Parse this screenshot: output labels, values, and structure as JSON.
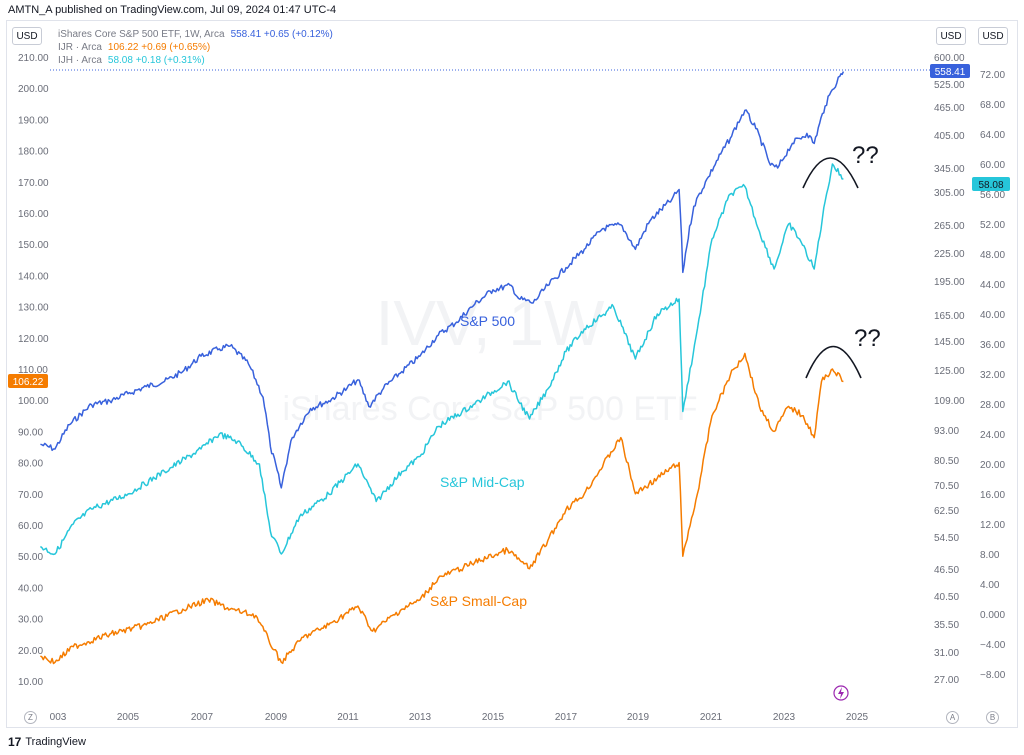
{
  "header": {
    "published": "AMTN_A published on TradingView.com, Jul 09, 2024 01:47 UTC-4"
  },
  "currency": {
    "left": "USD",
    "right1": "USD",
    "right2": "USD"
  },
  "legend": [
    {
      "symbol": "iShares Core S&P 500 ETF, 1W, Arca",
      "values": "558.41  +0.65 (+0.12%)",
      "color": "#3861dc"
    },
    {
      "symbol": "IJR · Arca",
      "values": "106.22  +0.69 (+0.65%)",
      "color": "#f57c00"
    },
    {
      "symbol": "IJH · Arca",
      "values": "58.08  +0.18 (+0.31%)",
      "color": "#26c6da"
    }
  ],
  "watermark": {
    "big": "IVV, 1W",
    "small": "iShares Core S&P 500 ETF"
  },
  "annotations": {
    "q1": "??",
    "q2": "??"
  },
  "axis_buttons": {
    "z": "Z",
    "a": "A",
    "b": "B"
  },
  "footer": {
    "logo": "17",
    "brand": "TradingView"
  },
  "chart_data": {
    "type": "line",
    "x_ticks": [
      "003",
      "2005",
      "2007",
      "2009",
      "2011",
      "2013",
      "2015",
      "2017",
      "2019",
      "2021",
      "2023",
      "2025"
    ],
    "left_axis_ticks": [
      "210.00",
      "200.00",
      "190.00",
      "180.00",
      "170.00",
      "160.00",
      "150.00",
      "140.00",
      "130.00",
      "120.00",
      "110.00",
      "100.00",
      "90.00",
      "80.00",
      "70.00",
      "60.00",
      "50.00",
      "40.00",
      "30.00",
      "20.00",
      "10.00"
    ],
    "mid_axis_ticks": [
      "600.00",
      "525.00",
      "465.00",
      "405.00",
      "345.00",
      "305.00",
      "265.00",
      "225.00",
      "195.00",
      "165.00",
      "145.00",
      "125.00",
      "109.00",
      "93.00",
      "80.50",
      "70.50",
      "62.50",
      "54.50",
      "46.50",
      "40.50",
      "35.50",
      "31.00",
      "27.00"
    ],
    "right_axis_ticks": [
      "72.00",
      "68.00",
      "64.00",
      "60.00",
      "56.00",
      "52.00",
      "48.00",
      "44.00",
      "40.00",
      "36.00",
      "32.00",
      "28.00",
      "24.00",
      "20.00",
      "16.00",
      "12.00",
      "8.00",
      "4.00",
      "0.000",
      "−4.00",
      "−8.00"
    ],
    "badges": [
      {
        "axis": "left",
        "value": "106.22",
        "color": "#f57c00"
      },
      {
        "axis": "mid",
        "value": "558.41",
        "color": "#3861dc"
      },
      {
        "axis": "right",
        "value": "58.08",
        "color": "#26c6da"
      }
    ],
    "series": [
      {
        "name": "S&P 500",
        "color": "#3861dc",
        "points": [
          [
            2002.6,
            87
          ],
          [
            2003.0,
            85
          ],
          [
            2003.4,
            96
          ],
          [
            2004.0,
            106
          ],
          [
            2004.5,
            108
          ],
          [
            2005.0,
            112
          ],
          [
            2005.5,
            116
          ],
          [
            2006.0,
            119
          ],
          [
            2006.5,
            125
          ],
          [
            2007.0,
            135
          ],
          [
            2007.5,
            140
          ],
          [
            2007.8,
            142
          ],
          [
            2008.3,
            130
          ],
          [
            2008.7,
            110
          ],
          [
            2008.9,
            86
          ],
          [
            2009.2,
            70
          ],
          [
            2009.5,
            90
          ],
          [
            2010.0,
            104
          ],
          [
            2010.5,
            108
          ],
          [
            2011.0,
            115
          ],
          [
            2011.3,
            120
          ],
          [
            2011.6,
            105
          ],
          [
            2012.0,
            115
          ],
          [
            2012.5,
            125
          ],
          [
            2013.0,
            135
          ],
          [
            2013.5,
            150
          ],
          [
            2014.0,
            160
          ],
          [
            2014.5,
            175
          ],
          [
            2015.0,
            188
          ],
          [
            2015.5,
            192
          ],
          [
            2015.7,
            180
          ],
          [
            2016.1,
            176
          ],
          [
            2016.5,
            192
          ],
          [
            2017.0,
            210
          ],
          [
            2017.5,
            230
          ],
          [
            2018.0,
            255
          ],
          [
            2018.5,
            260
          ],
          [
            2018.9,
            230
          ],
          [
            2019.3,
            265
          ],
          [
            2019.9,
            295
          ],
          [
            2020.1,
            310
          ],
          [
            2020.2,
            205
          ],
          [
            2020.5,
            285
          ],
          [
            2020.9,
            330
          ],
          [
            2021.5,
            400
          ],
          [
            2021.9,
            460
          ],
          [
            2022.2,
            420
          ],
          [
            2022.6,
            350
          ],
          [
            2022.8,
            345
          ],
          [
            2023.2,
            390
          ],
          [
            2023.6,
            410
          ],
          [
            2023.8,
            390
          ],
          [
            2024.1,
            470
          ],
          [
            2024.3,
            510
          ],
          [
            2024.5,
            545
          ],
          [
            2024.6,
            558
          ]
        ]
      },
      {
        "name": "S&P Mid-Cap",
        "color": "#26c6da",
        "points": [
          [
            2002.6,
            9
          ],
          [
            2003.0,
            8
          ],
          [
            2003.5,
            12
          ],
          [
            2004.0,
            14
          ],
          [
            2005.0,
            16
          ],
          [
            2006.0,
            19
          ],
          [
            2007.0,
            22
          ],
          [
            2007.5,
            24
          ],
          [
            2008.0,
            23
          ],
          [
            2008.6,
            20
          ],
          [
            2008.9,
            11
          ],
          [
            2009.2,
            8
          ],
          [
            2009.7,
            13
          ],
          [
            2010.5,
            16
          ],
          [
            2011.3,
            20
          ],
          [
            2011.8,
            15
          ],
          [
            2012.5,
            19
          ],
          [
            2013.0,
            21
          ],
          [
            2013.5,
            25
          ],
          [
            2014.5,
            28
          ],
          [
            2015.4,
            31
          ],
          [
            2016.0,
            26
          ],
          [
            2016.5,
            30
          ],
          [
            2017.0,
            35
          ],
          [
            2017.5,
            38
          ],
          [
            2018.3,
            41
          ],
          [
            2018.9,
            34
          ],
          [
            2019.5,
            40
          ],
          [
            2020.1,
            42
          ],
          [
            2020.2,
            27
          ],
          [
            2020.6,
            38
          ],
          [
            2021.0,
            50
          ],
          [
            2021.5,
            56
          ],
          [
            2021.9,
            57
          ],
          [
            2022.3,
            51
          ],
          [
            2022.7,
            46
          ],
          [
            2023.1,
            52
          ],
          [
            2023.4,
            50
          ],
          [
            2023.8,
            46
          ],
          [
            2024.1,
            55
          ],
          [
            2024.3,
            60
          ],
          [
            2024.6,
            58
          ]
        ]
      },
      {
        "name": "S&P Small-Cap",
        "color": "#f57c00",
        "points": [
          [
            2002.6,
            18
          ],
          [
            2003.0,
            16
          ],
          [
            2003.5,
            21
          ],
          [
            2004.5,
            25
          ],
          [
            2005.5,
            28
          ],
          [
            2006.5,
            33
          ],
          [
            2007.2,
            36
          ],
          [
            2007.8,
            33
          ],
          [
            2008.5,
            31
          ],
          [
            2009.0,
            20
          ],
          [
            2009.2,
            16
          ],
          [
            2009.8,
            24
          ],
          [
            2010.5,
            28
          ],
          [
            2011.3,
            34
          ],
          [
            2011.7,
            26
          ],
          [
            2012.5,
            33
          ],
          [
            2013.0,
            36
          ],
          [
            2013.5,
            43
          ],
          [
            2014.5,
            48
          ],
          [
            2015.4,
            52
          ],
          [
            2016.0,
            46
          ],
          [
            2016.5,
            55
          ],
          [
            2017.0,
            65
          ],
          [
            2017.5,
            70
          ],
          [
            2018.5,
            88
          ],
          [
            2018.9,
            70
          ],
          [
            2019.5,
            75
          ],
          [
            2020.1,
            80
          ],
          [
            2020.2,
            50
          ],
          [
            2020.6,
            70
          ],
          [
            2021.0,
            95
          ],
          [
            2021.5,
            108
          ],
          [
            2021.9,
            115
          ],
          [
            2022.3,
            98
          ],
          [
            2022.7,
            90
          ],
          [
            2023.1,
            98
          ],
          [
            2023.5,
            95
          ],
          [
            2023.8,
            88
          ],
          [
            2024.0,
            106
          ],
          [
            2024.3,
            110
          ],
          [
            2024.6,
            106
          ]
        ]
      }
    ],
    "labels": [
      {
        "text": "S&P 500",
        "color": "#3861dc"
      },
      {
        "text": "S&P Mid-Cap",
        "color": "#26c6da"
      },
      {
        "text": "S&P Small-Cap",
        "color": "#f57c00"
      }
    ]
  }
}
